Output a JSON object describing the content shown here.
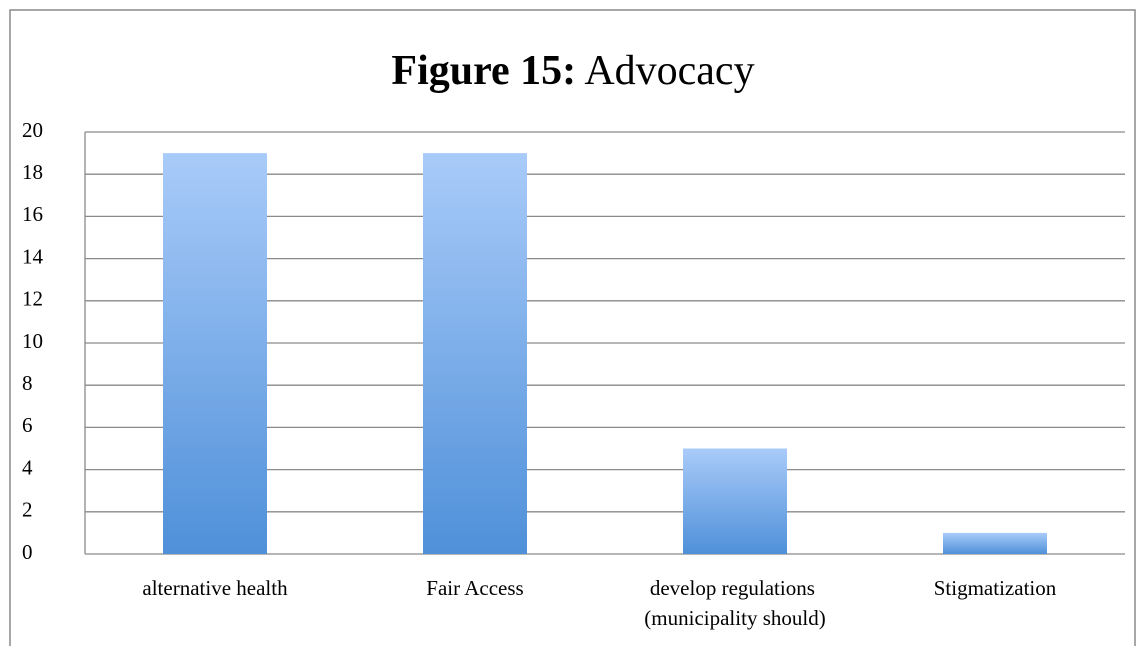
{
  "chart_data": {
    "type": "bar",
    "title_prefix": "Figure 15:",
    "title": "Advocacy",
    "categories": [
      "alternative health",
      "Fair Access",
      "develop regulations (municipality should)",
      "Stigmatization"
    ],
    "values": [
      19,
      19,
      5,
      1
    ],
    "color_gradient": [
      "#a9cbf9",
      "#4f90d9"
    ],
    "ylim": [
      0,
      20
    ],
    "yticks": [
      0,
      2,
      4,
      6,
      8,
      10,
      12,
      14,
      16,
      18,
      20
    ],
    "grid": true
  }
}
